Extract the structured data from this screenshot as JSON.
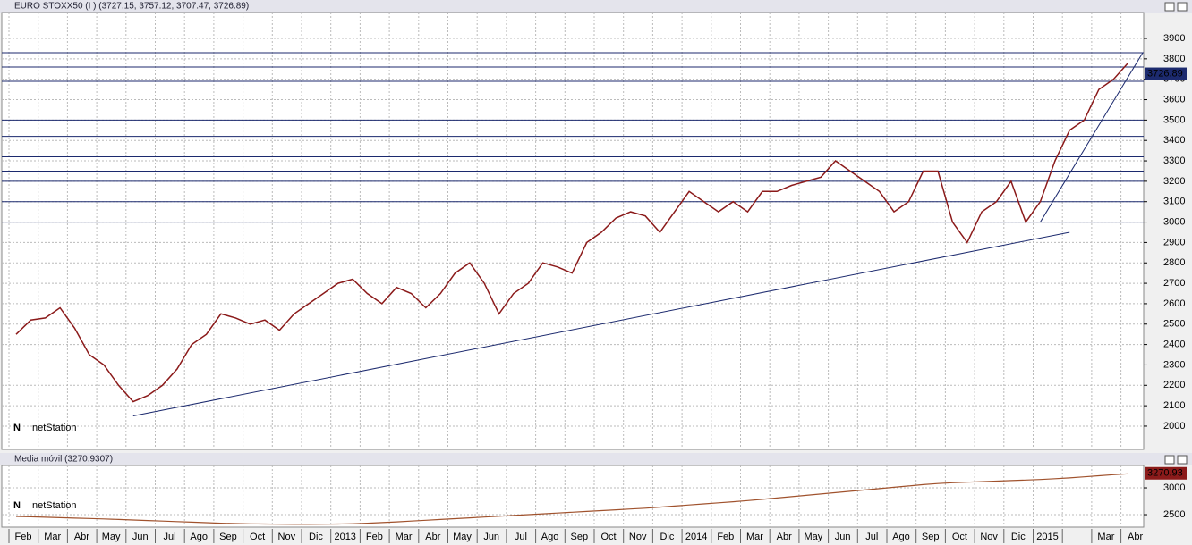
{
  "chart_data": [
    {
      "type": "line",
      "title": "EURO STOXX50 (I ) (3727.15, 3757.12, 3707.47, 3726.89)",
      "brand": "netStation",
      "last": 3726.89,
      "categories": [
        "Feb",
        null,
        "Mar",
        null,
        "Abr",
        null,
        "May",
        null,
        "Jun",
        null,
        "Jul",
        null,
        "Ago",
        null,
        "Sep",
        null,
        "Oct",
        null,
        "Nov",
        null,
        "Dic",
        null,
        "2013",
        null,
        "Feb",
        null,
        "Mar",
        null,
        "Abr",
        null,
        "May",
        null,
        "Jun",
        null,
        "Jul",
        null,
        "Ago",
        null,
        "Sep",
        null,
        "Oct",
        null,
        "Nov",
        null,
        "Dic",
        null,
        "2014",
        null,
        "Feb",
        null,
        "Mar",
        null,
        "Abr",
        null,
        "May",
        null,
        "Jun",
        null,
        "Jul",
        null,
        "Ago",
        null,
        "Sep",
        null,
        "Oct",
        null,
        "Nov",
        null,
        "Dic",
        null,
        "2015",
        null,
        null,
        null,
        "Mar",
        null,
        "Abr"
      ],
      "series": [
        {
          "name": "EURO STOXX50",
          "color": "#8b1a1a",
          "values": [
            2450,
            2520,
            2530,
            2580,
            2480,
            2350,
            2300,
            2200,
            2120,
            2150,
            2200,
            2280,
            2400,
            2450,
            2550,
            2530,
            2500,
            2520,
            2470,
            2550,
            2600,
            2650,
            2700,
            2720,
            2650,
            2600,
            2680,
            2650,
            2580,
            2650,
            2750,
            2800,
            2700,
            2550,
            2650,
            2700,
            2800,
            2780,
            2750,
            2900,
            2950,
            3020,
            3050,
            3030,
            2950,
            3050,
            3150,
            3100,
            3050,
            3100,
            3050,
            3150,
            3150,
            3180,
            3200,
            3220,
            3300,
            3250,
            3200,
            3150,
            3050,
            3100,
            3250,
            3250,
            3000,
            2900,
            3050,
            3100,
            3200,
            3000,
            3100,
            3300,
            3450,
            3500,
            3650,
            3700,
            3780
          ]
        }
      ],
      "hlines": [
        3000,
        3100,
        3200,
        3250,
        3320,
        3420,
        3500,
        3690,
        3760,
        3830
      ],
      "trendlines": [
        {
          "from": [
            8,
            2050
          ],
          "to": [
            72,
            2950
          ]
        },
        {
          "from": [
            70,
            3000
          ],
          "to": [
            77,
            3830
          ]
        }
      ],
      "ylim": [
        1886,
        4027
      ],
      "yticks": [
        2000,
        2100,
        2200,
        2300,
        2400,
        2500,
        2600,
        2700,
        2800,
        2900,
        3000,
        3100,
        3200,
        3300,
        3400,
        3500,
        3600,
        3700,
        3800,
        3900
      ],
      "grid": true
    },
    {
      "type": "line",
      "title": "Media móvil (3270.9307)",
      "brand": "netStation",
      "last": 3270.93,
      "series": [
        {
          "name": "Media móvil",
          "color": "#a0522d",
          "values": [
            2467,
            2460,
            2452,
            2444,
            2436,
            2428,
            2420,
            2410,
            2400,
            2390,
            2380,
            2370,
            2360,
            2350,
            2340,
            2333,
            2328,
            2325,
            2322,
            2320,
            2320,
            2322,
            2325,
            2330,
            2340,
            2352,
            2366,
            2380,
            2395,
            2410,
            2425,
            2440,
            2455,
            2470,
            2485,
            2500,
            2515,
            2530,
            2545,
            2560,
            2575,
            2590,
            2605,
            2620,
            2640,
            2660,
            2680,
            2700,
            2720,
            2740,
            2762,
            2785,
            2810,
            2835,
            2860,
            2885,
            2910,
            2935,
            2960,
            2985,
            3010,
            3035,
            3060,
            3080,
            3095,
            3105,
            3115,
            3125,
            3135,
            3145,
            3155,
            3170,
            3185,
            3205,
            3225,
            3245,
            3262
          ]
        }
      ],
      "ylim": [
        2267,
        3417
      ],
      "yticks": [
        2500,
        3000
      ],
      "grid": true
    }
  ]
}
